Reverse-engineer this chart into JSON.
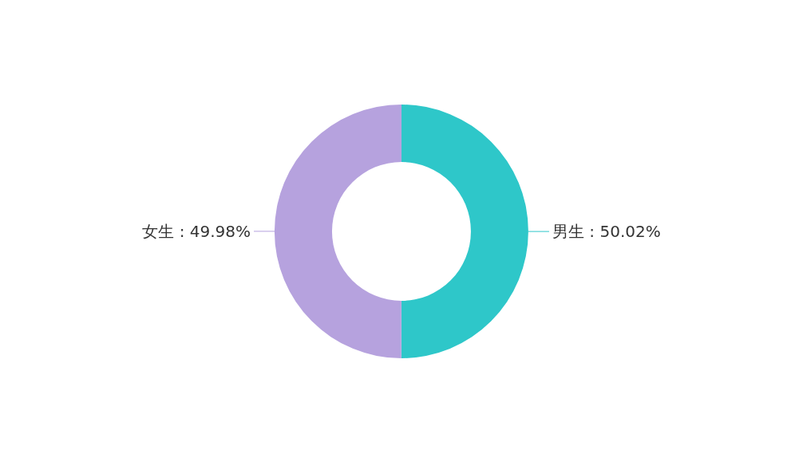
{
  "chart_data": {
    "type": "donut",
    "categories": [
      "男生",
      "女生"
    ],
    "values": [
      50.02,
      49.98
    ],
    "colors": [
      "#2ec7c9",
      "#b6a2de"
    ],
    "value_labels": [
      "50.02%",
      "49.98%"
    ]
  }
}
